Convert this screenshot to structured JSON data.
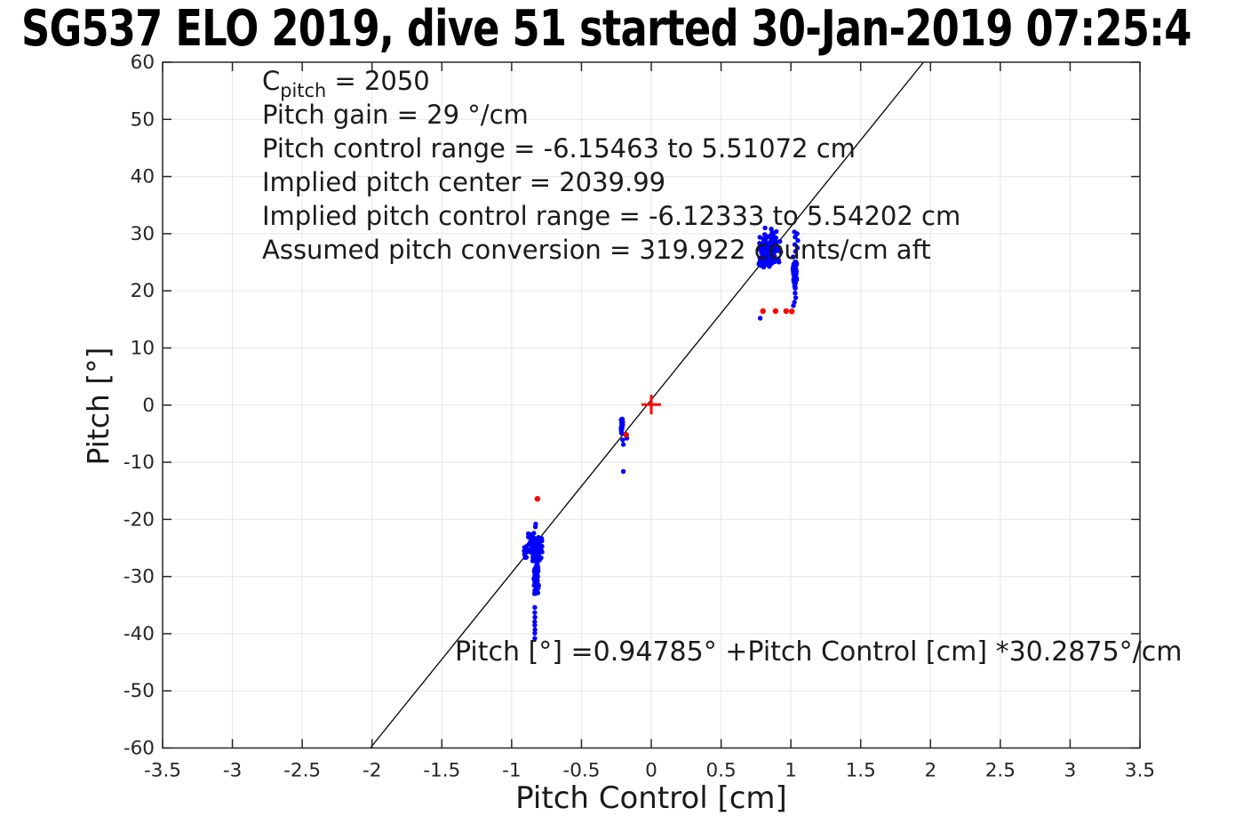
{
  "chart_data": {
    "type": "scatter",
    "title": "SG537 ELO 2019, dive 51 started 30-Jan-2019 07:25:4",
    "xlabel": "Pitch Control [cm]",
    "ylabel": "Pitch [°]",
    "xlim": [
      -3.5,
      3.5
    ],
    "ylim": [
      -60,
      60
    ],
    "grid": true,
    "xticks": [
      -3.5,
      -3,
      -2.5,
      -2,
      -1.5,
      -1,
      -0.5,
      0,
      0.5,
      1,
      1.5,
      2,
      2.5,
      3,
      3.5
    ],
    "xtick_labels": [
      "-3.5",
      "-3",
      "-2.5",
      "-2",
      "-1.5",
      "-1",
      "-0.5",
      "0",
      "0.5",
      "1",
      "1.5",
      "2",
      "2.5",
      "3",
      "3.5"
    ],
    "yticks": [
      -60,
      -50,
      -40,
      -30,
      -20,
      -10,
      0,
      10,
      20,
      30,
      40,
      50,
      60
    ],
    "ytick_labels": [
      "-60",
      "-50",
      "-40",
      "-30",
      "-20",
      "-10",
      "0",
      "10",
      "20",
      "30",
      "40",
      "50",
      "60"
    ],
    "colors": {
      "observed": "#0000ff",
      "flagged": "#ff0000",
      "fit_line": "#000000",
      "axis": "#262626",
      "grid": "#e6e6e6"
    },
    "fit_line": {
      "intercept_deg": 0.94785,
      "slope_deg_per_cm": 30.2875
    },
    "annotations": {
      "cpitch": {
        "base": "C",
        "sub": "pitch",
        "rest": " = 2050"
      },
      "lines": [
        "Pitch gain = 29 °/cm",
        "Pitch control range = -6.15463 to 5.51072 cm",
        "Implied pitch center = 2039.99",
        "Implied pitch control range = -6.12333 to 5.54202 cm",
        "Assumed pitch conversion = 319.922 counts/cm aft"
      ],
      "equation": "Pitch [°] =0.94785° +Pitch Control [cm] *30.2875°/cm"
    },
    "series": [
      {
        "name": "pitch observations",
        "marker": "dot",
        "color": "#0000ff",
        "clusters": [
          {
            "cx": 0.85,
            "cy": 27.3,
            "wx": 0.085,
            "hy": 3.4,
            "n": 150,
            "seed": 11
          },
          {
            "cx": 1.03,
            "cy": 23.3,
            "wx": 0.016,
            "hy": 3.3,
            "n": 70,
            "seed": 22
          },
          {
            "cx": -0.212,
            "cy": -3.6,
            "wx": 0.009,
            "hy": 1.4,
            "n": 24,
            "seed": 33
          },
          {
            "cx": -0.835,
            "cy": -24.8,
            "wx": 0.055,
            "hy": 2.9,
            "n": 120,
            "seed": 44
          },
          {
            "cx": -0.822,
            "cy": -30.2,
            "wx": 0.02,
            "hy": 3.2,
            "n": 55,
            "seed": 55
          },
          {
            "cx": -0.9,
            "cy": -25.5,
            "wx": 0.012,
            "hy": 1.2,
            "n": 10,
            "seed": 66
          }
        ],
        "points": [
          [
            0.78,
            15.2
          ],
          [
            0.815,
            31.0
          ],
          [
            0.86,
            30.8
          ],
          [
            1.025,
            30.3
          ],
          [
            1.045,
            30.0
          ],
          [
            1.03,
            29.4
          ],
          [
            1.05,
            28.8
          ],
          [
            1.028,
            28.1
          ],
          [
            1.047,
            27.5
          ],
          [
            1.033,
            26.9
          ],
          [
            1.03,
            19.6
          ],
          [
            1.035,
            18.8
          ],
          [
            1.025,
            18.0
          ],
          [
            1.018,
            17.4
          ],
          [
            -0.205,
            -6.1
          ],
          [
            -0.2,
            -6.9
          ],
          [
            -0.175,
            -5.8
          ],
          [
            -0.2,
            -11.6
          ],
          [
            -0.828,
            -20.8
          ],
          [
            -0.83,
            -21.3
          ],
          [
            -0.834,
            -35.4
          ],
          [
            -0.834,
            -36.3
          ],
          [
            -0.833,
            -37.1
          ],
          [
            -0.835,
            -37.9
          ],
          [
            -0.834,
            -38.5
          ],
          [
            -0.833,
            -39.3
          ],
          [
            -0.834,
            -39.9
          ],
          [
            -0.834,
            -40.8
          ]
        ]
      },
      {
        "name": "flagged points",
        "marker": "dot",
        "color": "#ff0000",
        "points": [
          [
            -0.815,
            -16.4
          ],
          [
            -0.18,
            -5.2
          ],
          [
            0.8,
            16.45
          ],
          [
            0.89,
            16.45
          ],
          [
            0.966,
            16.45
          ],
          [
            1.007,
            16.4
          ]
        ]
      },
      {
        "name": "implied pitch center",
        "marker": "plus",
        "color": "#ff0000",
        "points": [
          [
            0,
            0.1
          ]
        ]
      }
    ]
  }
}
